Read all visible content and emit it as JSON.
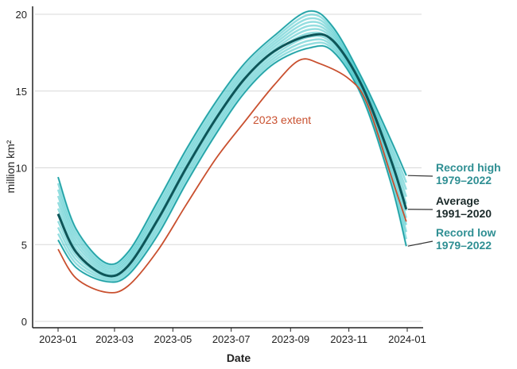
{
  "chart_data": {
    "type": "line",
    "xlabel": "Date",
    "ylabel": "million km²",
    "ylim": [
      0,
      20
    ],
    "xlim": [
      "2023-01-01",
      "2024-01-01"
    ],
    "grid": "horizontal",
    "yticks": [
      "0",
      "5",
      "10",
      "15",
      "20"
    ],
    "xticks": [
      {
        "date": "2023-01-01",
        "label": "2023-01"
      },
      {
        "date": "2023-03-01",
        "label": "2023-03"
      },
      {
        "date": "2023-05-01",
        "label": "2023-05"
      },
      {
        "date": "2023-07-01",
        "label": "2023-07"
      },
      {
        "date": "2023-09-01",
        "label": "2023-09"
      },
      {
        "date": "2023-11-01",
        "label": "2023-11"
      },
      {
        "date": "2024-01-01",
        "label": "2024-01"
      }
    ],
    "colors": {
      "band": "#3cc3c6",
      "average": "#0d5558",
      "y2023": "#c9502f",
      "label_teal": "#2f8f93"
    },
    "series": [
      {
        "name": "Record high 1979–2022",
        "label1": "Record high",
        "label2": "1979–2022",
        "x": [
          "2023-01-01",
          "2023-01-20",
          "2023-02-20",
          "2023-03-15",
          "2023-04-15",
          "2023-05-15",
          "2023-06-15",
          "2023-07-15",
          "2023-08-15",
          "2023-09-20",
          "2023-10-15",
          "2023-11-15",
          "2023-12-15",
          "2023-12-31"
        ],
        "values": [
          9.4,
          6.0,
          3.8,
          4.5,
          7.8,
          11.2,
          14.3,
          16.8,
          18.6,
          20.2,
          19.2,
          15.8,
          11.8,
          9.5
        ]
      },
      {
        "name": "Average 1991–2020",
        "label1": "Average",
        "label2": "1991–2020",
        "x": [
          "2023-01-01",
          "2023-01-20",
          "2023-02-20",
          "2023-03-15",
          "2023-04-15",
          "2023-05-15",
          "2023-06-15",
          "2023-07-15",
          "2023-08-15",
          "2023-09-20",
          "2023-10-15",
          "2023-11-15",
          "2023-12-15",
          "2023-12-31"
        ],
        "values": [
          7.0,
          4.5,
          3.0,
          3.6,
          6.6,
          10.0,
          13.2,
          15.8,
          17.6,
          18.6,
          18.3,
          15.3,
          10.5,
          7.3
        ]
      },
      {
        "name": "Record low 1979–2022",
        "label1": "Record low",
        "label2": "1979–2022",
        "x": [
          "2023-01-01",
          "2023-01-20",
          "2023-02-20",
          "2023-03-15",
          "2023-04-15",
          "2023-05-15",
          "2023-06-15",
          "2023-07-15",
          "2023-08-15",
          "2023-09-20",
          "2023-10-15",
          "2023-11-15",
          "2023-12-15",
          "2023-12-31"
        ],
        "values": [
          5.3,
          3.5,
          2.6,
          3.0,
          5.6,
          9.0,
          12.2,
          14.9,
          16.8,
          17.8,
          17.6,
          14.6,
          9.0,
          4.9
        ]
      },
      {
        "name": "2023 extent",
        "label1": "2023 extent",
        "x": [
          "2023-01-01",
          "2023-01-20",
          "2023-02-20",
          "2023-03-15",
          "2023-04-15",
          "2023-05-15",
          "2023-06-15",
          "2023-07-15",
          "2023-08-15",
          "2023-09-10",
          "2023-10-01",
          "2023-11-01",
          "2023-11-20",
          "2023-12-15",
          "2023-12-31"
        ],
        "values": [
          4.7,
          2.8,
          1.9,
          2.3,
          4.6,
          7.6,
          10.6,
          13.0,
          15.4,
          17.0,
          16.8,
          15.8,
          14.2,
          9.5,
          6.5
        ]
      }
    ]
  }
}
